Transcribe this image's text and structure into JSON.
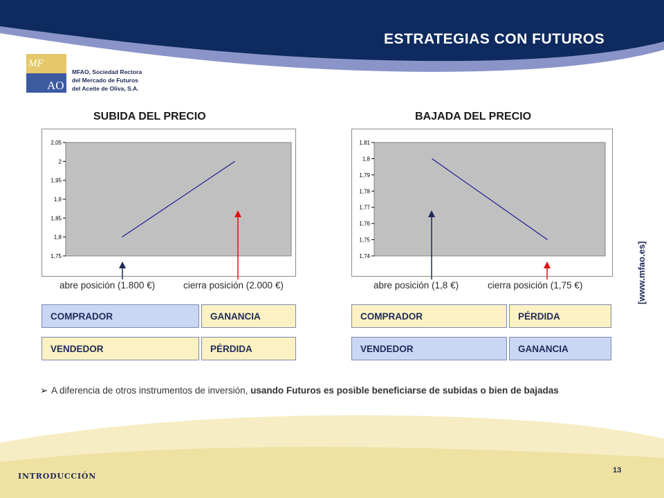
{
  "header": {
    "title": "ESTRATEGIAS CON FUTUROS"
  },
  "logo": {
    "mark_top": "MF",
    "mark_bottom": "AO",
    "lines": [
      "MFAO, Sociedad Rectora",
      "del Mercado de Futuros",
      "del Aceite de Oliva, S.A."
    ]
  },
  "colors": {
    "navy": "#1f2a57",
    "blue_cell": "#c9d7f4",
    "yellow_cell": "#fbf1c2",
    "line": "#00008b",
    "arrow_open": "#1f2a57",
    "arrow_close": "#e01010",
    "plot_bg": "#c0c0c0"
  },
  "left": {
    "title": "SUBIDA DEL PRECIO",
    "open_label": "abre posición (1.800 €)",
    "close_label": "cierra posición (2.000 €)",
    "rows": [
      {
        "role": "COMPRADOR",
        "result": "GANANCIA"
      },
      {
        "role": "VENDEDOR",
        "result": "PÉRDIDA"
      }
    ]
  },
  "right": {
    "title": "BAJADA DEL PRECIO",
    "open_label": "abre posición (1,8 €)",
    "close_label": "cierra posición (1,75 €)",
    "rows": [
      {
        "role": "COMPRADOR",
        "result": "PÉRDIDA"
      },
      {
        "role": "VENDEDOR",
        "result": "GANANCIA"
      }
    ]
  },
  "chart_data": [
    {
      "type": "line",
      "title": "SUBIDA DEL PRECIO",
      "ylim": [
        1.75,
        2.05
      ],
      "yticks": [
        "2,05",
        "2",
        "1,95",
        "1,9",
        "1,85",
        "1,8",
        "1,75"
      ],
      "ytick_values": [
        2.05,
        2.0,
        1.95,
        1.9,
        1.85,
        1.8,
        1.75
      ],
      "series": [
        {
          "values": [
            1.8,
            2.0
          ]
        }
      ]
    },
    {
      "type": "line",
      "title": "BAJADA DEL PRECIO",
      "ylim": [
        1.74,
        1.81
      ],
      "yticks": [
        "1,81",
        "1,8",
        "1,79",
        "1,78",
        "1,77",
        "1,76",
        "1,75",
        "1,74"
      ],
      "ytick_values": [
        1.81,
        1.8,
        1.79,
        1.78,
        1.77,
        1.76,
        1.75,
        1.74
      ],
      "series": [
        {
          "values": [
            1.8,
            1.75
          ]
        }
      ]
    }
  ],
  "bullet": {
    "plain": "A diferencia de otros instrumentos de inversión, ",
    "bold": "usando Futuros es posible beneficiarse de subidas o bien de bajadas"
  },
  "side_url": "[www.mfao.es]",
  "footer": {
    "section": "INTRODUCCIÓN",
    "page": "13"
  }
}
